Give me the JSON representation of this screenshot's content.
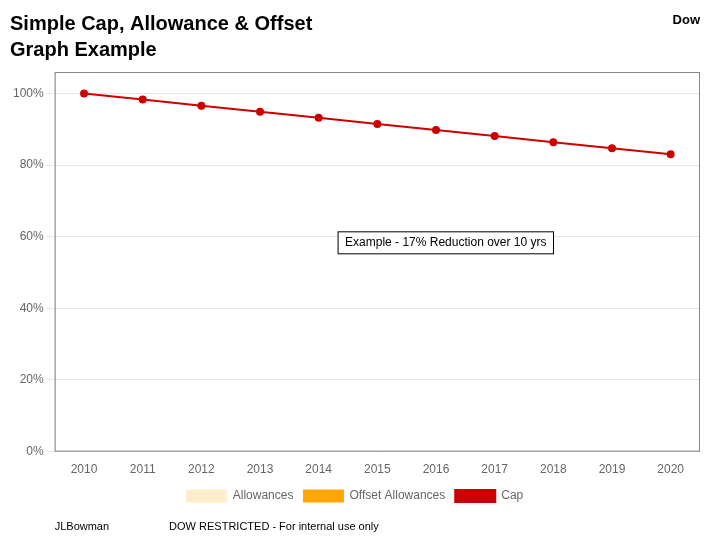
{
  "chart_data": {
    "type": "line",
    "title": "Simple Cap, Allowance & Offset",
    "subtitle": "Graph Example",
    "categories": [
      "2010",
      "2011",
      "2012",
      "2013",
      "2014",
      "2015",
      "2016",
      "2017",
      "2018",
      "2019",
      "2020"
    ],
    "series": [
      {
        "name": "Allowances",
        "type": "bar",
        "color": "#ffeecc",
        "values": [
          null,
          null,
          null,
          null,
          null,
          null,
          null,
          null,
          null,
          null,
          null
        ]
      },
      {
        "name": "Offset Allowances",
        "type": "bar",
        "color": "#ffa500",
        "values": [
          null,
          null,
          null,
          null,
          null,
          null,
          null,
          null,
          null,
          null,
          null
        ]
      },
      {
        "name": "Cap",
        "type": "line",
        "color": "#cc0000",
        "values": [
          1.0,
          0.983,
          0.966,
          0.949,
          0.932,
          0.915,
          0.898,
          0.881,
          0.864,
          0.847,
          0.83
        ]
      }
    ],
    "ylim": [
      0.0,
      1.06
    ],
    "yticks": [
      {
        "value": 0.0,
        "label": "0%"
      },
      {
        "value": 0.2,
        "label": "20%"
      },
      {
        "value": 0.4,
        "label": "40%"
      },
      {
        "value": 0.6,
        "label": "60%"
      },
      {
        "value": 0.8,
        "label": "80%"
      },
      {
        "value": 1.0,
        "label": "100%"
      }
    ],
    "grid": true,
    "legend": "bottom",
    "annotations": [
      "Example - 17% Reduction over 10 yrs"
    ],
    "footer": [
      "JLBowman",
      "DOW RESTRICTED - For internal use only"
    ],
    "logo": "Dow"
  }
}
